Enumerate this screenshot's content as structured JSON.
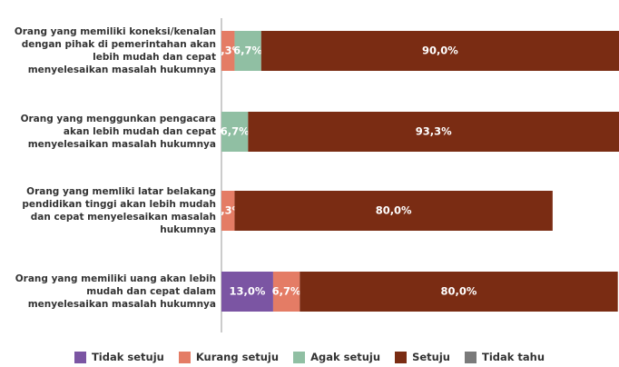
{
  "chart_data": {
    "type": "stacked_barh",
    "categories": [
      "Orang yang memiliki koneksi/kenalan dengan pihak di pemerintahan akan lebih mudah dan cepat menyelesaikan masalah hukumnya",
      "Orang yang menggunkan pengacara akan lebih mudah dan cepat menyelesaikan masalah hukumnya",
      "Orang yang memliki latar belakang pendidikan tinggi akan lebih mudah dan cepat menyelesaikan masalah hukumnya",
      "Orang yang memiliki uang akan lebih mudah dan cepat dalam menyelesaikan masalah hukumnya"
    ],
    "series": [
      {
        "name": "Tidak setuju",
        "color": "#7b55a3",
        "values": [
          0,
          0,
          0,
          13.0
        ],
        "value_labels": [
          null,
          null,
          null,
          "13,0%"
        ]
      },
      {
        "name": "Kurang setuju",
        "color": "#e47c65",
        "values": [
          3.3,
          0,
          3.3,
          6.7
        ],
        "value_labels": [
          "3,3%",
          null,
          "3,3%",
          "6,7%"
        ]
      },
      {
        "name": "Agak setuju",
        "color": "#90bfa3",
        "values": [
          6.7,
          6.7,
          0,
          0
        ],
        "value_labels": [
          "6,7%",
          "6,7%",
          null,
          null
        ]
      },
      {
        "name": "Setuju",
        "color": "#7a2c13",
        "values": [
          90.0,
          93.3,
          80.0,
          80.0
        ],
        "value_labels": [
          "90,0%",
          "93,3%",
          "80,0%",
          "80,0%"
        ]
      },
      {
        "name": "Tidak tahu",
        "color": "#7a7a7a",
        "values": [
          0,
          0,
          0,
          0
        ],
        "value_labels": [
          null,
          null,
          null,
          null
        ]
      }
    ],
    "xlim": [
      0,
      100
    ],
    "legend": "bottom"
  }
}
